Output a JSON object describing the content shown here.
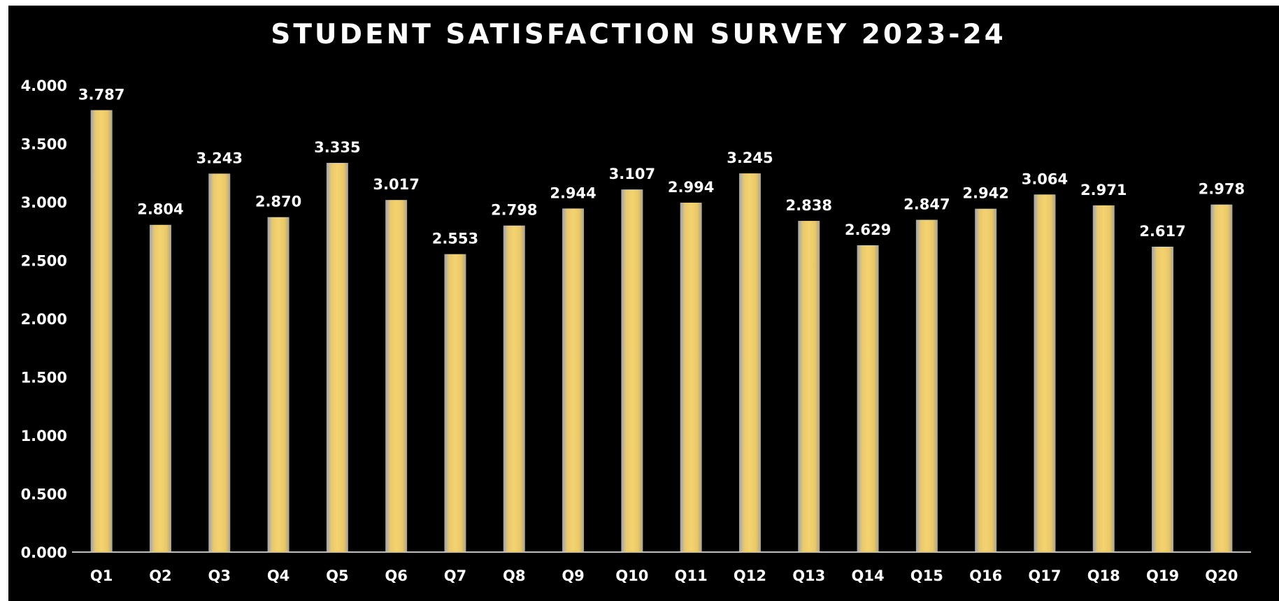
{
  "colors": {
    "background": "#000000",
    "bar_fill": "#f2cd6a",
    "bar_edge": "#9a9a9a",
    "text": "#ffffff",
    "axis": "#bfbfbf"
  },
  "chart_data": {
    "type": "bar",
    "title": "STUDENT SATISFACTION SURVEY 2023-24",
    "xlabel": "",
    "ylabel": "",
    "ylim": [
      0,
      4
    ],
    "grid": false,
    "legend": "none",
    "y_ticks": [
      "0.000",
      "0.500",
      "1.000",
      "1.500",
      "2.000",
      "2.500",
      "3.000",
      "3.500",
      "4.000"
    ],
    "categories": [
      "Q1",
      "Q2",
      "Q3",
      "Q4",
      "Q5",
      "Q6",
      "Q7",
      "Q8",
      "Q9",
      "Q10",
      "Q11",
      "Q12",
      "Q13",
      "Q14",
      "Q15",
      "Q16",
      "Q17",
      "Q18",
      "Q19",
      "Q20"
    ],
    "values": [
      3.787,
      2.804,
      3.243,
      2.87,
      3.335,
      3.017,
      2.553,
      2.798,
      2.944,
      3.107,
      2.994,
      3.245,
      2.838,
      2.629,
      2.847,
      2.942,
      3.064,
      2.971,
      2.617,
      2.978
    ],
    "data_labels": [
      "3.787",
      "2.804",
      "3.243",
      "2.870",
      "3.335",
      "3.017",
      "2.553",
      "2.798",
      "2.944",
      "3.107",
      "2.994",
      "3.245",
      "2.838",
      "2.629",
      "2.847",
      "2.942",
      "3.064",
      "2.971",
      "2.617",
      "2.978"
    ]
  }
}
